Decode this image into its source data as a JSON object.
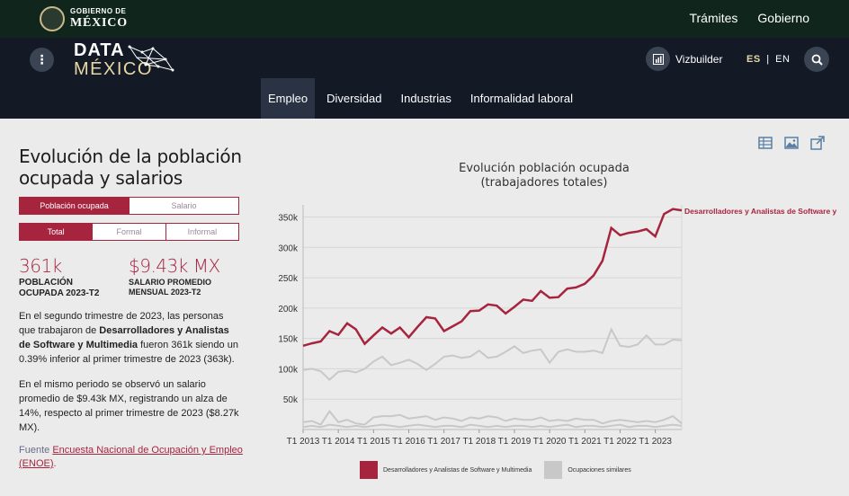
{
  "gov": {
    "small": "GOBIERNO DE",
    "big": "MÉXICO",
    "links": [
      "Trámites",
      "Gobierno"
    ]
  },
  "header": {
    "brand_line1": "DATA",
    "brand_line2": "MÉXICO",
    "vizbuilder": "Vizbuilder",
    "lang_es": "ES",
    "lang_sep": "|",
    "lang_en": "EN",
    "tabs": [
      "Empleo",
      "Diversidad",
      "Industrias",
      "Informalidad laboral"
    ],
    "active_tab": "Empleo"
  },
  "panel": {
    "title": "Evolución de la población ocupada y salarios",
    "toggle1": [
      "Población ocupada",
      "Salario"
    ],
    "toggle2": [
      "Total",
      "Formal",
      "Informal"
    ],
    "stat1_value": "361k",
    "stat1_label": "POBLACIÓN OCUPADA 2023-T2",
    "stat2_value": "$9.43k MX",
    "stat2_label": "SALARIO PROMEDIO MENSUAL 2023-T2",
    "p1_a": "En el segundo trimestre de 2023, las personas que trabajaron de ",
    "p1_b": "Desarrolladores y Analistas de Software y Multimedia",
    "p1_c": " fueron 361k siendo un 0.39% inferior al primer trimestre de 2023  (363k).",
    "p2": "En el mismo periodo se observó un salario promedio de $9.43k MX, registrando un alza de 14%, respecto al primer trimestre de 2023 ($8.27k MX).",
    "source_label": "Fuente ",
    "source_link": "Encuesta Nacional de Ocupación y Empleo (ENOE)",
    "source_end": "."
  },
  "chart_data": {
    "type": "line",
    "title": "Evolución población ocupada (trabajadores totales)",
    "x_tick_labels": [
      "T1 2013",
      "T1 2014",
      "T1 2015",
      "T1 2016",
      "T1 2017",
      "T1 2018",
      "T1 2019",
      "T1 2020",
      "T1 2021",
      "T1 2022",
      "T1 2023"
    ],
    "y_tick_labels": [
      "50k",
      "100k",
      "150k",
      "200k",
      "250k",
      "300k",
      "350k"
    ],
    "ylim": [
      0,
      370000
    ],
    "grid": true,
    "legend_placement": "bottom",
    "series": [
      {
        "name": "Desarrolladores y Analistas de Software y Multimedia",
        "label": "Desarrolladores y Analistas de Software y",
        "color": "#a7243e",
        "values": [
          138000,
          142000,
          145000,
          162000,
          156000,
          175000,
          165000,
          141000,
          155000,
          168000,
          158000,
          168000,
          152000,
          169000,
          185000,
          183000,
          162000,
          170000,
          178000,
          195000,
          196000,
          206000,
          204000,
          191000,
          202000,
          214000,
          212000,
          228000,
          217000,
          218000,
          232000,
          234000,
          240000,
          254000,
          278000,
          332000,
          320000,
          324000,
          326000,
          330000,
          318000,
          355000,
          363000,
          361000
        ]
      },
      {
        "name": "Ocupaciones similares",
        "color": "#c8c8c8",
        "values": [
          98000,
          100000,
          96000,
          82000,
          95000,
          97000,
          94000,
          100000,
          112000,
          120000,
          106000,
          110000,
          115000,
          108000,
          98000,
          108000,
          120000,
          122000,
          118000,
          120000,
          130000,
          118000,
          120000,
          128000,
          137000,
          126000,
          130000,
          132000,
          110000,
          128000,
          132000,
          128000,
          128000,
          130000,
          126000,
          165000,
          138000,
          136000,
          140000,
          155000,
          140000,
          140000,
          148000,
          147000
        ]
      }
    ]
  },
  "colors": {
    "accent": "#a7243e",
    "gov_bar": "#10261d",
    "header": "#131a26",
    "similar": "#c8c8c8"
  }
}
